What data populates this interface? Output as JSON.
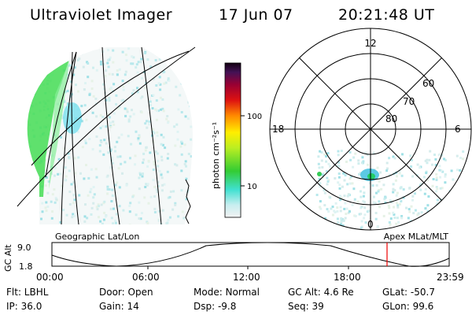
{
  "header": {
    "title": "Ultraviolet Imager",
    "date": "17 Jun 07",
    "time": "20:21:48 UT"
  },
  "colorbar": {
    "unit_label": "photon cm⁻²s⁻¹",
    "ticks": [
      "100",
      "10"
    ]
  },
  "geo_panel": {
    "label": "Geographic Lat/Lon"
  },
  "polar_panel": {
    "label": "Apex MLat/MLT",
    "mlt_top": "12",
    "mlt_left": "18",
    "mlt_right": "6",
    "mlt_bottom": "0",
    "lat_labels": [
      "60",
      "70",
      "80"
    ]
  },
  "orbit": {
    "ylabel": "GC Alt",
    "y_ticks": [
      "9.0",
      "1.8"
    ],
    "x_ticks": [
      "00:00",
      "06:00",
      "12:00",
      "18:00",
      "23:59"
    ]
  },
  "footer": {
    "flt": "Flt: LBHL",
    "door": "Door: Open",
    "mode": "Mode: Normal",
    "gc_alt": "GC Alt: 4.6 Re",
    "glat": "GLat: -50.7",
    "ip": "IP: 36.0",
    "gain": "Gain: 14",
    "dsp": "Dsp:   -9.8",
    "seq": "Seq: 39",
    "glon": "GLon: 99.6"
  }
}
